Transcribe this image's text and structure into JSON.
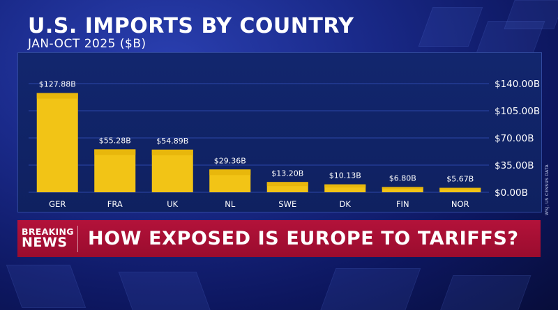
{
  "header": {
    "title": "U.S. IMPORTS BY COUNTRY",
    "subtitle": "JAN-OCT 2025 ($B)"
  },
  "source_note": "WSJ, US CENSUS DATA",
  "banner": {
    "breaking_line1": "BREAKING",
    "breaking_line2": "NEWS",
    "headline": "HOW EXPOSED IS EUROPE TO TARIFFS?"
  },
  "colors": {
    "bar": "#f2c416",
    "bar_top": "#e8b70c",
    "panel": "#12266e",
    "gridline": "#2c46a8",
    "banner": "#a60f33"
  },
  "chart_data": {
    "type": "bar",
    "title": "U.S. IMPORTS BY COUNTRY",
    "subtitle": "JAN-OCT 2025 ($B)",
    "categories": [
      "GER",
      "FRA",
      "UK",
      "NL",
      "SWE",
      "DK",
      "FIN",
      "NOR"
    ],
    "values": [
      127.88,
      55.28,
      54.89,
      29.36,
      13.2,
      10.13,
      6.8,
      5.67
    ],
    "data_labels": [
      "$127.88B",
      "$55.28B",
      "$54.89B",
      "$29.36B",
      "$13.20B",
      "$10.13B",
      "$6.80B",
      "$5.67B"
    ],
    "yticks": [
      0,
      35,
      70,
      105,
      140
    ],
    "ytick_labels": [
      "$0.00B",
      "$35.00B",
      "$70.00B",
      "$105.00B",
      "$140.00B"
    ],
    "ylim": [
      0,
      140
    ],
    "y_axis_position": "right",
    "grid": true,
    "legend": "none"
  }
}
